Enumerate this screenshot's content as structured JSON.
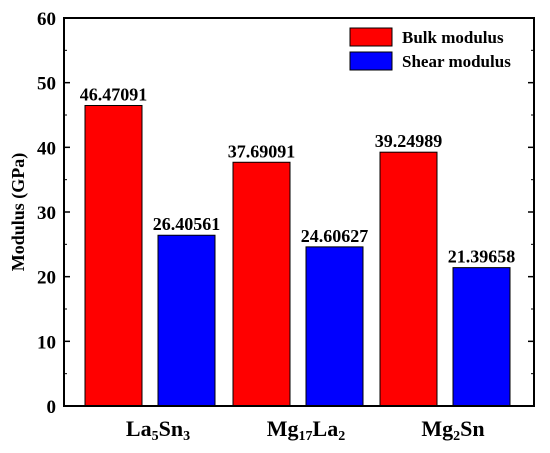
{
  "chart_data": {
    "type": "bar",
    "categories": [
      "La5Sn3",
      "Mg17La2",
      "Mg2Sn"
    ],
    "category_parts": [
      [
        {
          "t": "La",
          "sub": false
        },
        {
          "t": "5",
          "sub": true
        },
        {
          "t": "Sn",
          "sub": false
        },
        {
          "t": "3",
          "sub": true
        }
      ],
      [
        {
          "t": "Mg",
          "sub": false
        },
        {
          "t": "17",
          "sub": true
        },
        {
          "t": "La",
          "sub": false
        },
        {
          "t": "2",
          "sub": true
        }
      ],
      [
        {
          "t": "Mg",
          "sub": false
        },
        {
          "t": "2",
          "sub": true
        },
        {
          "t": "Sn",
          "sub": false
        }
      ]
    ],
    "series": [
      {
        "name": "Bulk modulus",
        "color": "#ff0000",
        "values": [
          46.47091,
          37.69091,
          39.24989
        ],
        "labels": [
          "46.47091",
          "37.69091",
          "39.24989"
        ]
      },
      {
        "name": "Shear modulus",
        "color": "#0000ff",
        "values": [
          26.40561,
          24.60627,
          21.39658
        ],
        "labels": [
          "26.40561",
          "24.60627",
          "21.39658"
        ]
      }
    ],
    "title": "",
    "xlabel": "",
    "ylabel": "Modulus (GPa)",
    "ylim": [
      0,
      60
    ],
    "yticks": [
      0,
      10,
      20,
      30,
      40,
      50,
      60
    ],
    "grid": false,
    "legend_position": "top-right"
  }
}
